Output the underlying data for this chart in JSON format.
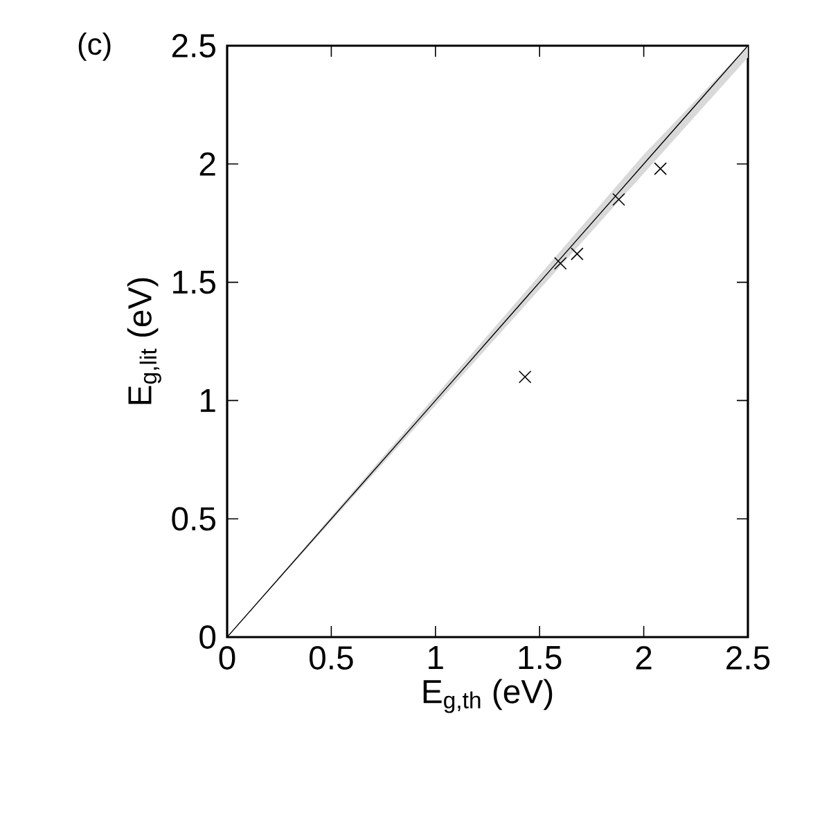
{
  "chart_data": {
    "type": "scatter",
    "xlabel": "E$_{g,th}$ (eV)",
    "ylabel": "E$_{g,lit}$ (eV)",
    "annotations": [
      "(c)"
    ],
    "xlim": [
      0,
      2.5
    ],
    "ylim": [
      0,
      2.5
    ],
    "xticks": [
      0,
      0.5,
      1,
      1.5,
      2,
      2.5
    ],
    "yticks": [
      0,
      0.5,
      1,
      1.5,
      2,
      2.5
    ],
    "grid": false,
    "series": [
      {
        "color": "#000000",
        "marker": "cross",
        "x": [
          1.43,
          1.6,
          1.68,
          1.88,
          2.08
        ],
        "values": [
          1.1,
          1.58,
          1.62,
          1.85,
          1.98
        ]
      },
      {
        "type": "line",
        "color": "#000000",
        "marker": "none",
        "line_style": "solid",
        "x": [
          0,
          0.5,
          1,
          1.5,
          2,
          2.5
        ],
        "values": [
          0,
          0.5,
          1,
          1.5,
          2,
          2.5
        ],
        "lower": [
          0,
          0.49,
          0.98,
          1.47,
          1.96,
          2.45
        ],
        "upper": [
          0,
          0.51,
          1.02,
          1.53,
          2.04,
          2.5
        ]
      }
    ]
  }
}
